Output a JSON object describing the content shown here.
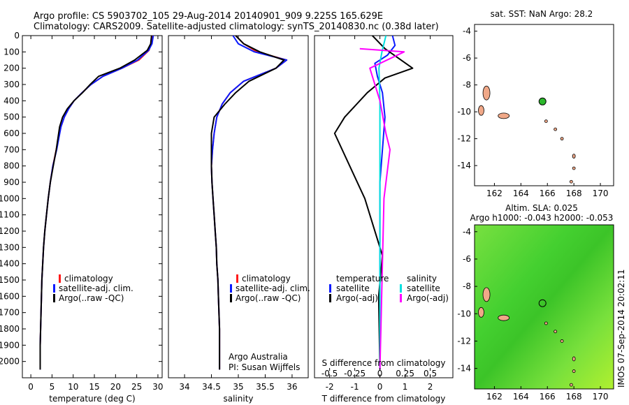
{
  "figure": {
    "title_line1": "Argo profile: CS 5903702_105 29-Aug-2014 20140901_909 9.225S 165.629E",
    "title_line2": "Climatology: CARS2009. Satellite-adjusted climatology: synTS_20140830.nc (0.38d later)",
    "credit_line1": "Argo Australia",
    "credit_line2": "PI: Susan Wijffels",
    "side_stamp": "IMOS 07-Sep-2014 20:02:11"
  },
  "colors": {
    "climatology": "#ff1a1a",
    "satellite": "#0a1aff",
    "argo": "#000000",
    "sat_salinity": "#00e0e0",
    "argo_salinity": "#ff00ff",
    "land": "#f0a888",
    "float_marker": "#2cb82c"
  },
  "chart_data": [
    {
      "type": "line",
      "name": "temperature",
      "xlabel": "temperature (deg C)",
      "ylabel": "",
      "xlim": [
        -2,
        31
      ],
      "ylim": [
        2100,
        0
      ],
      "xticks": [
        0,
        5,
        10,
        15,
        20,
        25,
        30
      ],
      "yticks": [
        0,
        100,
        200,
        300,
        400,
        500,
        600,
        700,
        800,
        900,
        1000,
        1100,
        1200,
        1300,
        1400,
        1500,
        1600,
        1700,
        1800,
        1900,
        2000
      ],
      "legend": [
        "climatology",
        "satellite-adj. clim.",
        "Argo(..raw -QC)"
      ],
      "legend_position": "lower-center",
      "series": [
        {
          "name": "climatology",
          "color": "#ff1a1a",
          "x": [
            28.6,
            28.4,
            27.9,
            25.5,
            21.5,
            17.0,
            14.2,
            12.1,
            10.2,
            8.9,
            7.9,
            7.1,
            6.0,
            5.2,
            4.6,
            4.1,
            3.7,
            3.3,
            3.0,
            2.8,
            2.6,
            2.5,
            2.4,
            2.3,
            2.2,
            2.2
          ],
          "y": [
            0,
            50,
            90,
            150,
            200,
            250,
            300,
            350,
            400,
            450,
            500,
            560,
            700,
            800,
            900,
            1000,
            1100,
            1200,
            1300,
            1400,
            1500,
            1600,
            1700,
            1800,
            1900,
            2050
          ]
        },
        {
          "name": "satellite-adj. clim.",
          "color": "#0a1aff",
          "x": [
            28.9,
            28.6,
            27.8,
            25.2,
            21.5,
            17.0,
            14.2,
            12.1,
            10.2,
            8.9,
            7.9,
            7.1,
            6.1,
            5.2,
            4.6,
            4.1,
            3.7,
            3.3,
            3.0,
            2.8,
            2.6,
            2.5,
            2.4,
            2.3,
            2.2,
            2.2
          ],
          "y": [
            0,
            50,
            90,
            150,
            200,
            250,
            300,
            350,
            400,
            450,
            500,
            560,
            700,
            800,
            900,
            1000,
            1100,
            1200,
            1300,
            1400,
            1500,
            1600,
            1700,
            1800,
            1900,
            2050
          ]
        },
        {
          "name": "Argo(..raw -QC)",
          "color": "#000000",
          "x": [
            28.5,
            28.3,
            27.5,
            24.5,
            21.0,
            16.0,
            14.0,
            12.2,
            10.2,
            8.6,
            7.5,
            6.8,
            6.0,
            5.3,
            4.6,
            4.1,
            3.7,
            3.3,
            3.0,
            2.8,
            2.6,
            2.5,
            2.4,
            2.3,
            2.2,
            2.2
          ],
          "y": [
            0,
            50,
            90,
            150,
            200,
            250,
            300,
            350,
            400,
            450,
            500,
            560,
            700,
            800,
            900,
            1000,
            1100,
            1200,
            1300,
            1400,
            1500,
            1600,
            1700,
            1800,
            1900,
            2050
          ]
        }
      ]
    },
    {
      "type": "line",
      "name": "salinity",
      "xlabel": "salinity",
      "xlim": [
        33.7,
        36.3
      ],
      "ylim": [
        2100,
        0
      ],
      "xticks": [
        34,
        34.5,
        35,
        35.5,
        36
      ],
      "xticklabels": [
        "34",
        "34.5",
        "35",
        "35.5",
        "36"
      ],
      "legend": [
        "climatology",
        "satellite-adj. clim.",
        "Argo(..raw -QC)"
      ],
      "legend_position": "lower-center",
      "series": [
        {
          "name": "climatology",
          "color": "#ff1a1a",
          "x": [
            34.95,
            35.1,
            35.35,
            35.9,
            35.7,
            35.1,
            34.85,
            34.7,
            34.6,
            34.55,
            34.52,
            34.5,
            34.51,
            34.53,
            34.55,
            34.57,
            34.59,
            34.6,
            34.62,
            34.63,
            34.64,
            34.65,
            34.65
          ],
          "y": [
            0,
            50,
            100,
            150,
            200,
            280,
            350,
            420,
            500,
            600,
            700,
            800,
            900,
            1000,
            1100,
            1200,
            1300,
            1400,
            1500,
            1600,
            1700,
            1800,
            2050
          ]
        },
        {
          "name": "satellite-adj. clim.",
          "color": "#0a1aff",
          "x": [
            34.9,
            35.0,
            35.3,
            35.9,
            35.7,
            35.1,
            34.85,
            34.7,
            34.6,
            34.55,
            34.52,
            34.5,
            34.51,
            34.53,
            34.55,
            34.57,
            34.59,
            34.6,
            34.62,
            34.63,
            34.64,
            34.65,
            34.65
          ],
          "y": [
            0,
            50,
            100,
            150,
            200,
            280,
            350,
            420,
            500,
            600,
            700,
            800,
            900,
            1000,
            1100,
            1200,
            1300,
            1400,
            1500,
            1600,
            1700,
            1800,
            2050
          ]
        },
        {
          "name": "Argo(..raw -QC)",
          "color": "#000000",
          "x": [
            34.95,
            35.1,
            35.4,
            35.85,
            35.7,
            35.2,
            34.95,
            34.75,
            34.55,
            34.5,
            34.5,
            34.5,
            34.51,
            34.53,
            34.55,
            34.57,
            34.59,
            34.6,
            34.62,
            34.63,
            34.64,
            34.65,
            34.65
          ],
          "y": [
            0,
            50,
            100,
            150,
            200,
            280,
            350,
            420,
            500,
            600,
            700,
            800,
            900,
            1000,
            1100,
            1200,
            1300,
            1400,
            1500,
            1600,
            1700,
            1800,
            2050
          ]
        }
      ]
    },
    {
      "type": "line",
      "name": "differences",
      "xlabel": "T difference from climatology",
      "xlabel_top": "S difference from climatology",
      "xlim": [
        -2.6,
        2.9
      ],
      "ylim": [
        2100,
        0
      ],
      "xticks": [
        -2,
        -1,
        0,
        1,
        2
      ],
      "top_ticks": [
        -0.5,
        -0.25,
        0,
        0.25,
        0.5
      ],
      "top_ticklabels": [
        "-0.5",
        "-0.25",
        "0",
        "0.25",
        "0.5"
      ],
      "s_scale_factor": 4,
      "legend_groups": [
        {
          "header": "temperature",
          "items": [
            "satellite",
            "Argo(-adj)"
          ]
        },
        {
          "header": "salinity",
          "items": [
            "satellite",
            "Argo(-adj)"
          ]
        }
      ],
      "legend_position": "lower-center",
      "series": [
        {
          "name": "T satellite",
          "color": "#0a1aff",
          "x": [
            0.5,
            0.6,
            0.3,
            -0.2,
            -0.1,
            0.1,
            0.2,
            0.1,
            0.0,
            0.0,
            0.0,
            0.0,
            0.0
          ],
          "y": [
            0,
            60,
            120,
            170,
            250,
            350,
            500,
            700,
            900,
            1200,
            1500,
            1800,
            2050
          ]
        },
        {
          "name": "T Argo(-adj)",
          "color": "#000000",
          "x": [
            -0.3,
            0.2,
            1.3,
            0.2,
            -0.5,
            -1.4,
            -1.8,
            -1.2,
            -0.6,
            -0.1,
            0.1,
            -0.05,
            0.0
          ],
          "y": [
            0,
            80,
            200,
            260,
            350,
            500,
            600,
            800,
            1000,
            1250,
            1350,
            1600,
            2050
          ]
        },
        {
          "name": "S satellite",
          "color": "#00e0e0",
          "x": [
            0.06,
            0.02,
            -0.01,
            0.0,
            0.0,
            0.0,
            0.0,
            0.0
          ],
          "y": [
            0,
            100,
            200,
            400,
            800,
            1200,
            1600,
            2050
          ]
        },
        {
          "name": "S Argo(-adj)",
          "color": "#ff00ff",
          "x": [
            -0.2,
            0.24,
            -0.1,
            0.0,
            0.06,
            0.1,
            0.04,
            0.0
          ],
          "y": [
            80,
            100,
            200,
            400,
            600,
            700,
            1000,
            2050
          ]
        }
      ]
    },
    {
      "type": "scatter",
      "name": "sst-map",
      "title": "sat. SST: NaN Argo: 28.2",
      "xlim": [
        160.5,
        171
      ],
      "ylim": [
        -15.5,
        -3.5
      ],
      "xticks": [
        162,
        164,
        166,
        168,
        170
      ],
      "yticks": [
        -4,
        -6,
        -8,
        -10,
        -12,
        -14
      ],
      "points": [
        {
          "lon": 165.63,
          "lat": -9.23,
          "color": "#2cb82c"
        }
      ]
    },
    {
      "type": "heatmap",
      "name": "sla-map",
      "title_line1": "Altim. SLA: 0.025",
      "title_line2": "Argo h1000: -0.043 h2000: -0.053",
      "xlim": [
        160.5,
        171
      ],
      "ylim": [
        -15.5,
        -3.5
      ],
      "xticks": [
        162,
        164,
        166,
        168,
        170
      ],
      "yticks": [
        -4,
        -6,
        -8,
        -10,
        -12,
        -14
      ],
      "points": [
        {
          "lon": 165.63,
          "lat": -9.23
        }
      ]
    }
  ]
}
